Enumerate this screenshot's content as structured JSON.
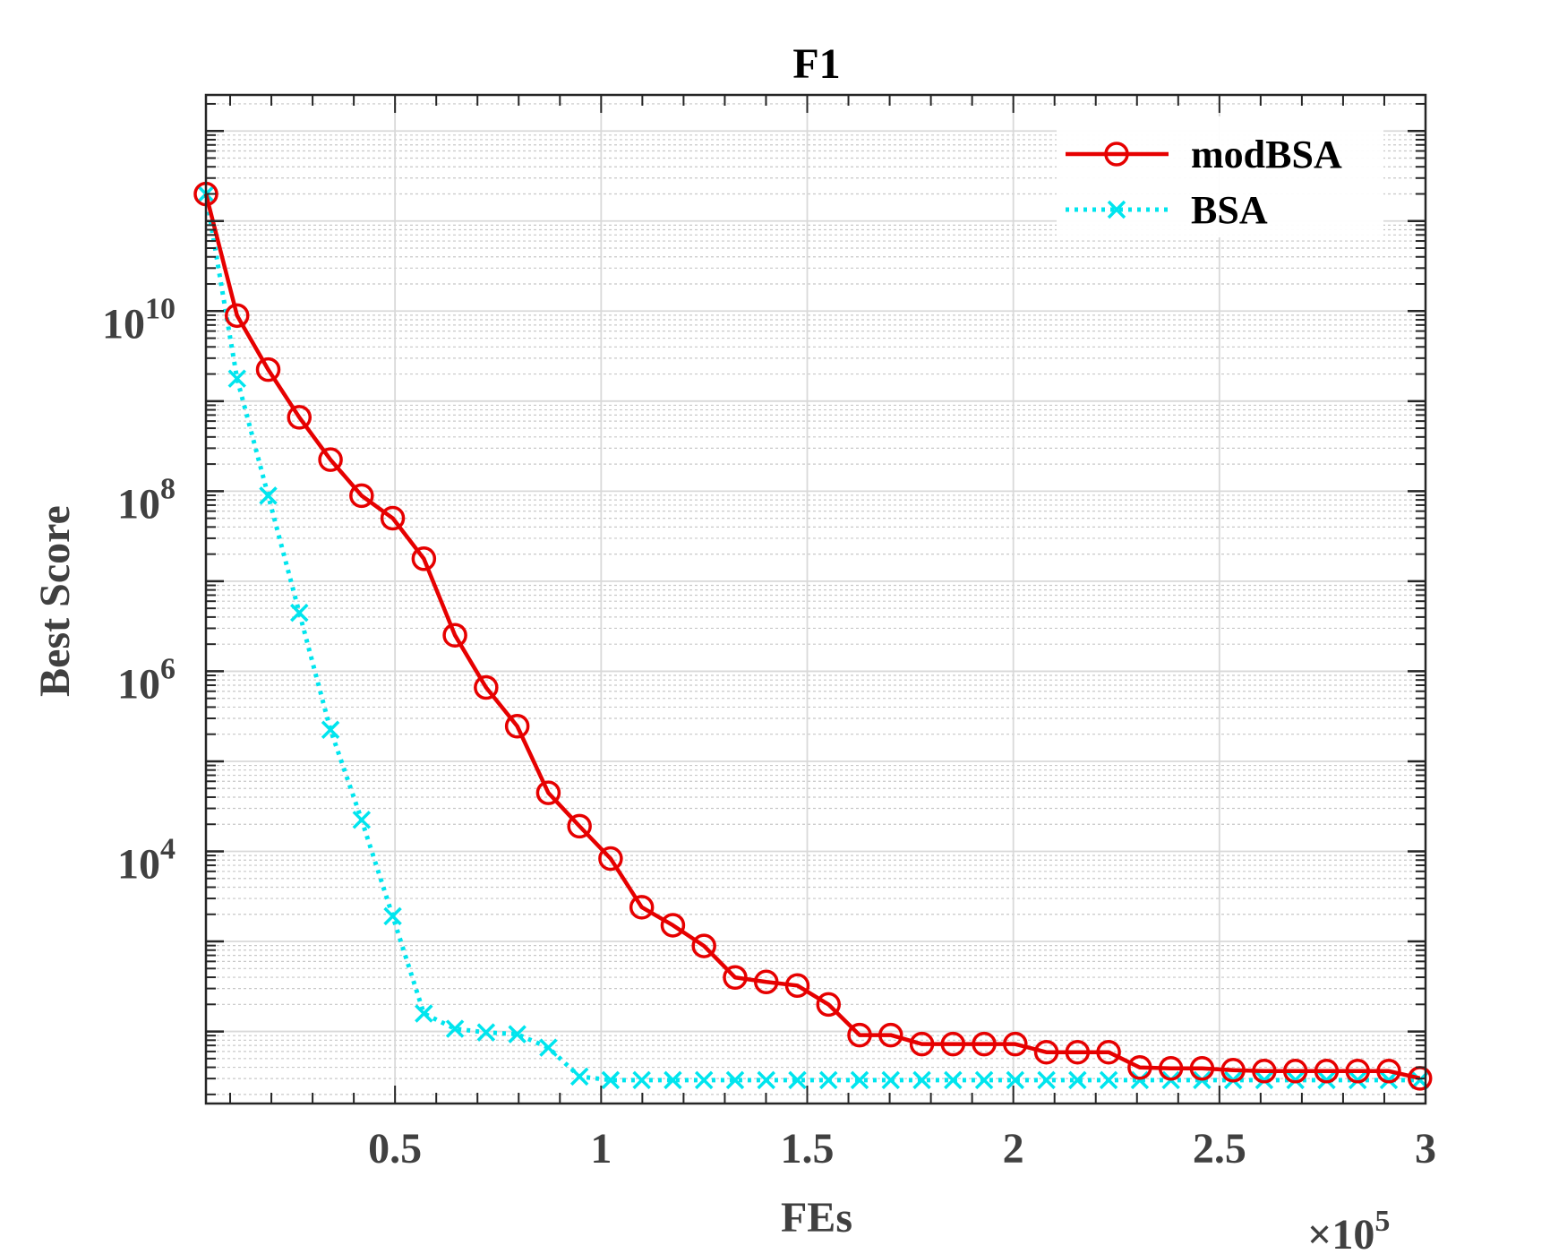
{
  "chart_data": {
    "type": "line",
    "title": "F1",
    "xlabel": "FEs",
    "ylabel": "Best Score",
    "x_multiplier": {
      "base": "10",
      "exponent": "5",
      "symbol": "×"
    },
    "xlim": [
      0.0413,
      3.0
    ],
    "ylog": true,
    "ylim_log10": [
      1.2,
      12.4
    ],
    "x_ticks": [
      {
        "value": 0.5,
        "label": "0.5"
      },
      {
        "value": 1,
        "label": "1"
      },
      {
        "value": 1.5,
        "label": "1.5"
      },
      {
        "value": 2,
        "label": "2"
      },
      {
        "value": 2.5,
        "label": "2.5"
      },
      {
        "value": 3,
        "label": "3"
      }
    ],
    "y_ticks": [
      {
        "log10": 4,
        "base": "10",
        "exponent": "4"
      },
      {
        "log10": 6,
        "base": "10",
        "exponent": "6"
      },
      {
        "log10": 8,
        "base": "10",
        "exponent": "8"
      },
      {
        "log10": 10,
        "base": "10",
        "exponent": "10"
      }
    ],
    "grid": true,
    "legend_position": "top-right",
    "series": [
      {
        "name": "modBSA",
        "color": "#e60000",
        "line_style": "solid",
        "marker": "circle",
        "x": [
          0.0413,
          0.1168,
          0.1923,
          0.2678,
          0.3434,
          0.4189,
          0.4944,
          0.5699,
          0.6454,
          0.7209,
          0.7965,
          0.872,
          0.9475,
          1.023,
          1.0985,
          1.174,
          1.2495,
          1.3251,
          1.4006,
          1.4761,
          1.5516,
          1.6271,
          1.7026,
          1.7782,
          1.8537,
          1.9292,
          2.0047,
          2.0802,
          2.1557,
          2.2312,
          2.3068,
          2.3823,
          2.4578,
          2.5333,
          2.6088,
          2.6843,
          2.7599,
          2.8354,
          2.9109,
          2.9864
        ],
        "log10_y": [
          11.3,
          9.95,
          9.35,
          8.82,
          8.35,
          7.95,
          7.7,
          7.25,
          6.4,
          5.82,
          5.39,
          4.65,
          4.28,
          3.92,
          3.38,
          3.18,
          2.95,
          2.6,
          2.55,
          2.51,
          2.3,
          1.96,
          1.96,
          1.86,
          1.86,
          1.86,
          1.86,
          1.77,
          1.77,
          1.77,
          1.6,
          1.59,
          1.59,
          1.57,
          1.56,
          1.56,
          1.56,
          1.56,
          1.56,
          1.48
        ]
      },
      {
        "name": "BSA",
        "color": "#00e5ee",
        "line_style": "dotted",
        "marker": "x",
        "x": [
          0.0413,
          0.1168,
          0.1923,
          0.2678,
          0.3434,
          0.4189,
          0.4944,
          0.5699,
          0.6454,
          0.7209,
          0.7965,
          0.872,
          0.9475,
          1.023,
          1.0985,
          1.174,
          1.2495,
          1.3251,
          1.4006,
          1.4761,
          1.5516,
          1.6271,
          1.7026,
          1.7782,
          1.8537,
          1.9292,
          2.0047,
          2.0802,
          2.1557,
          2.2312,
          2.3068,
          2.3823,
          2.4578,
          2.5333,
          2.6088,
          2.6843,
          2.7599,
          2.8354,
          2.9109,
          2.9864
        ],
        "log10_y": [
          11.3,
          9.25,
          7.95,
          6.65,
          5.35,
          4.35,
          3.28,
          2.2,
          2.03,
          1.99,
          1.97,
          1.82,
          1.5,
          1.46,
          1.46,
          1.46,
          1.46,
          1.46,
          1.46,
          1.46,
          1.46,
          1.46,
          1.46,
          1.46,
          1.46,
          1.46,
          1.46,
          1.46,
          1.46,
          1.46,
          1.46,
          1.46,
          1.46,
          1.46,
          1.46,
          1.46,
          1.46,
          1.46,
          1.46,
          1.46
        ]
      }
    ]
  }
}
